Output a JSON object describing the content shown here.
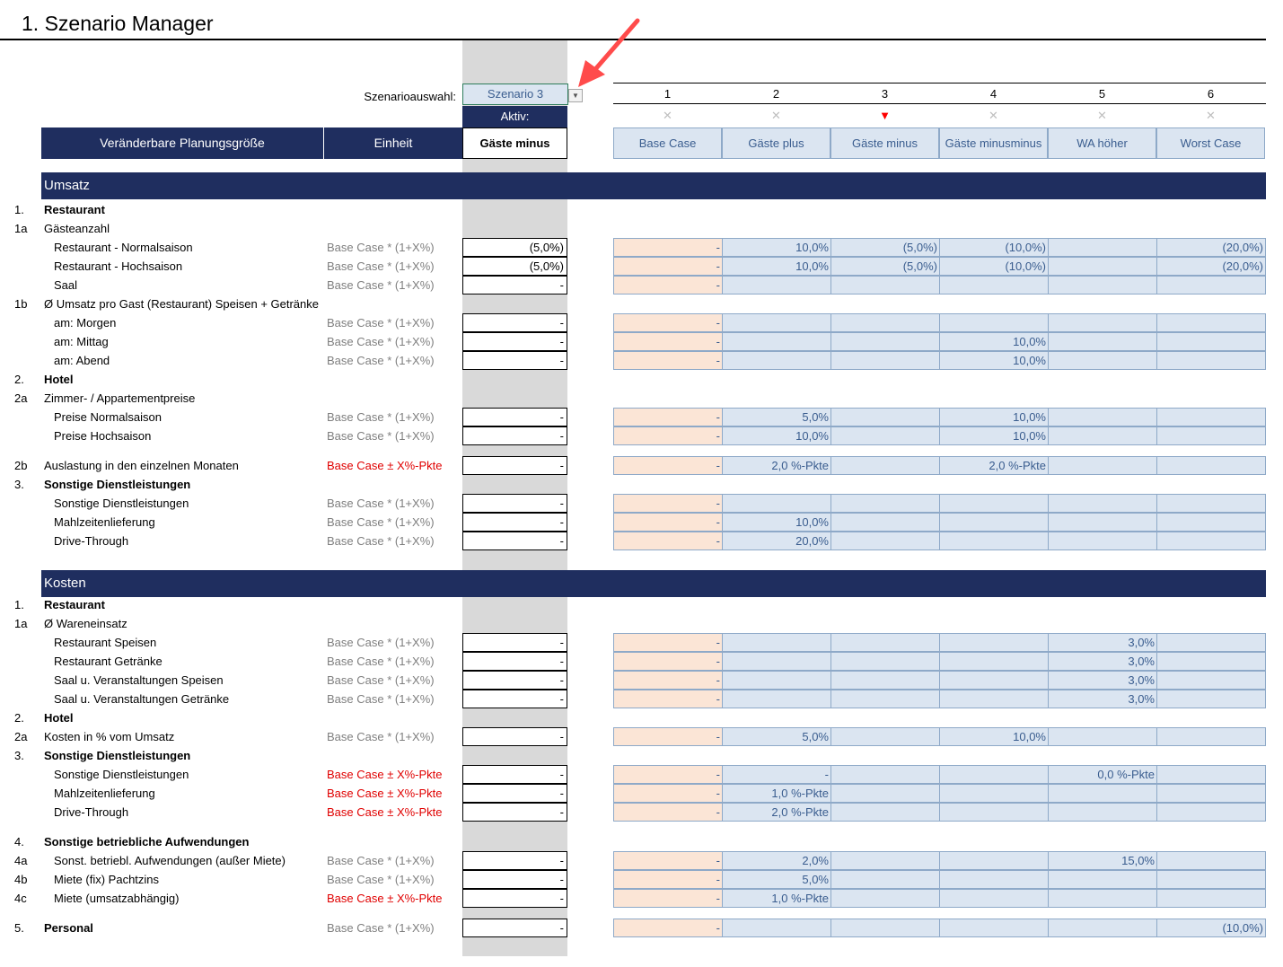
{
  "title": "1. Szenario Manager",
  "selector": {
    "label": "Szenarioauswahl:",
    "value": "Szenario 3",
    "active_label": "Aktiv:"
  },
  "header": {
    "variable": "Veränderbare Planungsgröße",
    "unit": "Einheit",
    "active": "Gäste minus"
  },
  "scenarios": [
    {
      "num": "1",
      "name": "Base Case",
      "mark": "✕"
    },
    {
      "num": "2",
      "name": "Gäste plus",
      "mark": "✕"
    },
    {
      "num": "3",
      "name": "Gäste minus",
      "mark": "▼"
    },
    {
      "num": "4",
      "name": "Gäste minusminus",
      "mark": "✕"
    },
    {
      "num": "5",
      "name": "WA höher",
      "mark": "✕"
    },
    {
      "num": "6",
      "name": "Worst Case",
      "mark": "✕"
    }
  ],
  "active_scenario_index": 2,
  "colors": {
    "header_navy": "#1f2e5f",
    "scenario_blue": "#dbe5f1",
    "base_peach": "#fbe5d6",
    "active_marker": "#ff0000",
    "unit_red": "#e00000"
  },
  "sections": [
    {
      "title": "Umsatz",
      "rows": [
        {
          "num": "1.",
          "label": "Restaurant",
          "bold": true
        },
        {
          "num": "1a",
          "label": "Gästeanzahl"
        },
        {
          "label": "Restaurant - Normalsaison",
          "indent": true,
          "unit": "Base Case * (1+X%)",
          "active": "(5,0%)",
          "values": [
            "-",
            "10,0%",
            "(5,0%)",
            "(10,0%)",
            "",
            "(20,0%)"
          ]
        },
        {
          "label": "Restaurant - Hochsaison",
          "indent": true,
          "unit": "Base Case * (1+X%)",
          "active": "(5,0%)",
          "values": [
            "-",
            "10,0%",
            "(5,0%)",
            "(10,0%)",
            "",
            "(20,0%)"
          ]
        },
        {
          "label": "Saal",
          "indent": true,
          "unit": "Base Case * (1+X%)",
          "active": "-",
          "values": [
            "-",
            "",
            "",
            "",
            "",
            ""
          ]
        },
        {
          "num": "1b",
          "label": "Ø Umsatz pro Gast (Restaurant) Speisen + Getränke"
        },
        {
          "label": "am: Morgen",
          "indent": true,
          "unit": "Base Case * (1+X%)",
          "active": "-",
          "values": [
            "-",
            "",
            "",
            "",
            "",
            ""
          ]
        },
        {
          "label": "am: Mittag",
          "indent": true,
          "unit": "Base Case * (1+X%)",
          "active": "-",
          "values": [
            "-",
            "",
            "",
            "10,0%",
            "",
            ""
          ]
        },
        {
          "label": "am: Abend",
          "indent": true,
          "unit": "Base Case * (1+X%)",
          "active": "-",
          "values": [
            "-",
            "",
            "",
            "10,0%",
            "",
            ""
          ]
        },
        {
          "num": "2.",
          "label": "Hotel",
          "bold": true
        },
        {
          "num": "2a",
          "label": "Zimmer- / Appartementpreise"
        },
        {
          "label": "Preise Normalsaison",
          "indent": true,
          "unit": "Base Case * (1+X%)",
          "active": "-",
          "values": [
            "-",
            "5,0%",
            "",
            "10,0%",
            "",
            ""
          ]
        },
        {
          "label": "Preise Hochsaison",
          "indent": true,
          "unit": "Base Case * (1+X%)",
          "active": "-",
          "values": [
            "-",
            "10,0%",
            "",
            "10,0%",
            "",
            ""
          ]
        },
        {
          "spacer": true
        },
        {
          "num": "2b",
          "label": "Auslastung in den einzelnen Monaten",
          "unit": "Base Case ± X%-Pkte",
          "unit_red": true,
          "active": "-",
          "values": [
            "-",
            "2,0 %-Pkte",
            "",
            "2,0 %-Pkte",
            "",
            ""
          ]
        },
        {
          "num": "3.",
          "label": "Sonstige Dienstleistungen",
          "bold": true
        },
        {
          "label": "Sonstige Dienstleistungen",
          "indent": true,
          "unit": "Base Case * (1+X%)",
          "active": "-",
          "values": [
            "-",
            "",
            "",
            "",
            "",
            ""
          ]
        },
        {
          "label": "Mahlzeitenlieferung",
          "indent": true,
          "unit": "Base Case * (1+X%)",
          "active": "-",
          "values": [
            "-",
            "10,0%",
            "",
            "",
            "",
            ""
          ]
        },
        {
          "label": "Drive-Through",
          "indent": true,
          "unit": "Base Case * (1+X%)",
          "active": "-",
          "values": [
            "-",
            "20,0%",
            "",
            "",
            "",
            ""
          ]
        }
      ]
    },
    {
      "title": "Kosten",
      "rows": [
        {
          "num": "1.",
          "label": "Restaurant",
          "bold": true
        },
        {
          "num": "1a",
          "label": "Ø Wareneinsatz"
        },
        {
          "label": "Restaurant Speisen",
          "indent": true,
          "unit": "Base Case * (1+X%)",
          "active": "-",
          "values": [
            "-",
            "",
            "",
            "",
            "3,0%",
            ""
          ]
        },
        {
          "label": "Restaurant Getränke",
          "indent": true,
          "unit": "Base Case * (1+X%)",
          "active": "-",
          "values": [
            "-",
            "",
            "",
            "",
            "3,0%",
            ""
          ]
        },
        {
          "label": "Saal u. Veranstaltungen Speisen",
          "indent": true,
          "unit": "Base Case * (1+X%)",
          "active": "-",
          "values": [
            "-",
            "",
            "",
            "",
            "3,0%",
            ""
          ]
        },
        {
          "label": "Saal u. Veranstaltungen Getränke",
          "indent": true,
          "unit": "Base Case * (1+X%)",
          "active": "-",
          "values": [
            "-",
            "",
            "",
            "",
            "3,0%",
            ""
          ]
        },
        {
          "num": "2.",
          "label": "Hotel",
          "bold": true
        },
        {
          "num": "2a",
          "label": "Kosten in % vom Umsatz",
          "unit": "Base Case * (1+X%)",
          "active": "-",
          "values": [
            "-",
            "5,0%",
            "",
            "10,0%",
            "",
            ""
          ]
        },
        {
          "num": "3.",
          "label": "Sonstige Dienstleistungen",
          "bold": true
        },
        {
          "label": "Sonstige Dienstleistungen",
          "indent": true,
          "unit": "Base Case ± X%-Pkte",
          "unit_red": true,
          "active": "-",
          "values": [
            "-",
            "-",
            "",
            "",
            "0,0 %-Pkte",
            ""
          ]
        },
        {
          "label": "Mahlzeitenlieferung",
          "indent": true,
          "unit": "Base Case ± X%-Pkte",
          "unit_red": true,
          "active": "-",
          "values": [
            "-",
            "1,0 %-Pkte",
            "",
            "",
            "",
            ""
          ]
        },
        {
          "label": "Drive-Through",
          "indent": true,
          "unit": "Base Case ± X%-Pkte",
          "unit_red": true,
          "active": "-",
          "values": [
            "-",
            "2,0 %-Pkte",
            "",
            "",
            "",
            ""
          ]
        },
        {
          "spacer": true
        },
        {
          "num": "4.",
          "label": "Sonstige betriebliche Aufwendungen",
          "bold": true
        },
        {
          "num": "4a",
          "label": "Sonst. betriebl. Aufwendungen (außer Miete)",
          "indent": true,
          "unit": "Base Case * (1+X%)",
          "active": "-",
          "values": [
            "-",
            "2,0%",
            "",
            "",
            "15,0%",
            ""
          ]
        },
        {
          "num": "4b",
          "label": "Miete (fix) Pachtzins",
          "indent": true,
          "unit": "Base Case * (1+X%)",
          "active": "-",
          "values": [
            "-",
            "5,0%",
            "",
            "",
            "",
            ""
          ]
        },
        {
          "num": "4c",
          "label": "Miete (umsatzabhängig)",
          "indent": true,
          "unit": "Base Case ± X%-Pkte",
          "unit_red": true,
          "active": "-",
          "values": [
            "-",
            "1,0 %-Pkte",
            "",
            "",
            "",
            ""
          ]
        },
        {
          "spacer": true
        },
        {
          "num": "5.",
          "label": "Personal",
          "bold": true,
          "unit": "Base Case * (1+X%)",
          "active": "-",
          "values": [
            "-",
            "",
            "",
            "",
            "",
            "(10,0%)"
          ]
        }
      ]
    }
  ]
}
